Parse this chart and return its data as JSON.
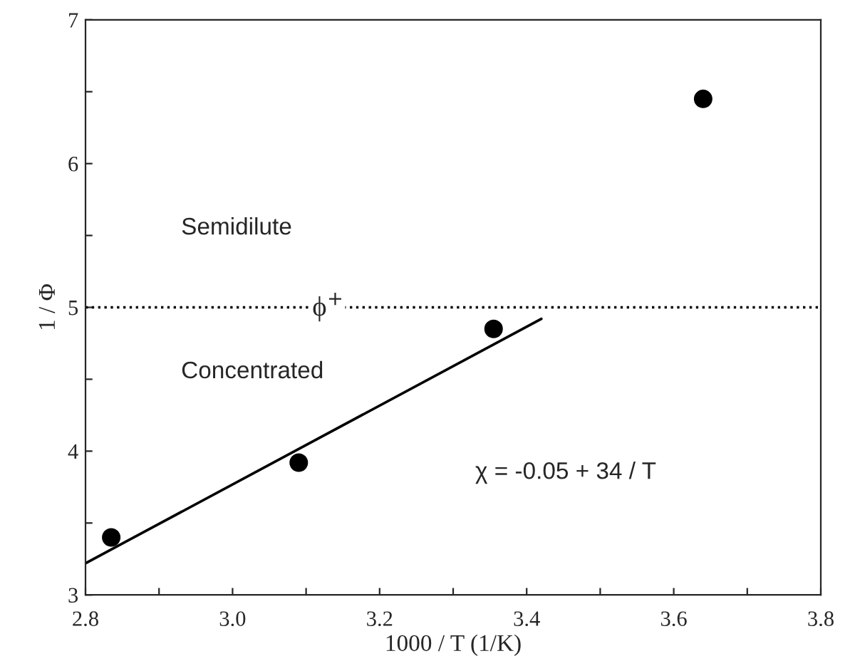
{
  "chart_data": {
    "type": "scatter",
    "xlabel": "1000 / T (1/K)",
    "ylabel": "1 / Φ",
    "xlim": [
      2.8,
      3.8
    ],
    "ylim": [
      3,
      7
    ],
    "xticks": [
      {
        "value": 2.8,
        "label": "2.8"
      },
      {
        "value": 2.9,
        "label": null
      },
      {
        "value": 3.0,
        "label": "3.0"
      },
      {
        "value": 3.1,
        "label": null
      },
      {
        "value": 3.2,
        "label": "3.2"
      },
      {
        "value": 3.3,
        "label": null
      },
      {
        "value": 3.4,
        "label": "3.4"
      },
      {
        "value": 3.5,
        "label": null
      },
      {
        "value": 3.6,
        "label": "3.6"
      },
      {
        "value": 3.7,
        "label": null
      },
      {
        "value": 3.8,
        "label": "3.8"
      }
    ],
    "yticks": [
      3,
      {
        "value": 3.5,
        "label": null
      },
      4,
      {
        "value": 4.5,
        "label": null
      },
      5,
      {
        "value": 5.5,
        "label": null
      },
      6,
      {
        "value": 6.5,
        "label": null
      },
      7
    ],
    "series": [
      {
        "color": "#000000",
        "marker": "circle",
        "x": [
          2.835,
          3.09,
          3.355,
          3.64
        ],
        "values": [
          3.4,
          3.92,
          4.85,
          6.45
        ]
      },
      {
        "type": "line",
        "marker": "none",
        "color": "#000000",
        "x": [
          2.8,
          3.42
        ],
        "values": [
          3.22,
          4.92
        ]
      }
    ],
    "ref_lines": [
      {
        "axis": "y",
        "value": 5,
        "line_style": "dotted",
        "color": "#000000"
      }
    ],
    "annotations": [
      "Semidilute",
      "Concentrated",
      "χ = -0.05 + 34 / T",
      {
        "text": "ϕ$^{+}$",
        "x": 3.13,
        "y": 5.0
      }
    ],
    "grid": false,
    "legend": false
  }
}
